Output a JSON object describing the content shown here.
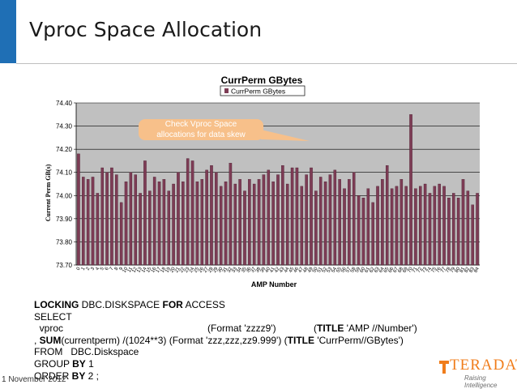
{
  "slide": {
    "title": "Vproc Space Allocation",
    "date": "1 November 2012",
    "logo_text": "TERADATA",
    "logo_tagline": "Raising Intelligence",
    "accent_color": "#1f6fb5",
    "logo_color": "#f07d1b",
    "callout": {
      "line1": "Check Vproc Space",
      "line2": "allocations for data skew",
      "color": "#f7c08a"
    }
  },
  "sql": {
    "l1": {
      "k1": "LOCKING",
      "t1": " DBC.DISKSPACE ",
      "k2": "FOR",
      "t2": " ACCESS"
    },
    "l2": "SELECT",
    "l3": {
      "a": "  vproc",
      "b": "(Format 'zzzz9')",
      "c1": "(",
      "k": "TITLE",
      "c2": " 'AMP //Number')"
    },
    "l4": {
      "a": ", ",
      "k1": "SUM",
      "t1": "(currentperm) /(1024**3) (Format 'zzz,zzz,zz9.999') (",
      "k2": "TITLE",
      "t2": " 'CurrPerm//GBytes')"
    },
    "l5": "FROM   DBC.Diskspace",
    "l6": {
      "t": "GROUP ",
      "k": "BY",
      "t2": " 1"
    },
    "l7": {
      "t": "ORDER ",
      "k": "BY",
      "t2": " 2 ;"
    }
  },
  "chart_data": {
    "type": "bar",
    "title": "CurrPerm GBytes",
    "xlabel": "AMP Number",
    "ylabel": "Current Perm GB(s)",
    "legend": {
      "position": "top-center",
      "entries": [
        "CurrPerm GBytes"
      ]
    },
    "ylim": [
      73.7,
      74.4
    ],
    "yticks": [
      "74.40",
      "74.30",
      "74.20",
      "74.10",
      "74.00",
      "73.90",
      "73.80",
      "73.70"
    ],
    "grid": true,
    "plot_background": "#c0c0c0",
    "bar_color": "#7d3c55",
    "series": [
      {
        "name": "CurrPerm GBytes",
        "values": [
          74.18,
          74.08,
          74.07,
          74.08,
          74.01,
          74.12,
          74.1,
          74.12,
          74.09,
          73.97,
          74.06,
          74.1,
          74.09,
          74.01,
          74.15,
          74.02,
          74.08,
          74.06,
          74.07,
          74.02,
          74.05,
          74.1,
          74.06,
          74.16,
          74.15,
          74.06,
          74.07,
          74.11,
          74.13,
          74.1,
          74.04,
          74.06,
          74.14,
          74.05,
          74.07,
          74.02,
          74.07,
          74.05,
          74.07,
          74.09,
          74.11,
          74.06,
          74.09,
          74.13,
          74.05,
          74.12,
          74.12,
          74.04,
          74.09,
          74.12,
          74.02,
          74.08,
          74.06,
          74.09,
          74.11,
          74.07,
          74.03,
          74.07,
          74.1,
          74.0,
          73.99,
          74.03,
          73.97,
          74.04,
          74.07,
          74.13,
          74.03,
          74.04,
          74.07,
          74.04,
          74.35,
          74.03,
          74.04,
          74.05,
          74.01,
          74.04,
          74.05,
          74.04,
          73.99,
          74.01,
          73.99,
          74.07,
          74.02,
          73.96,
          74.01
        ]
      }
    ]
  }
}
